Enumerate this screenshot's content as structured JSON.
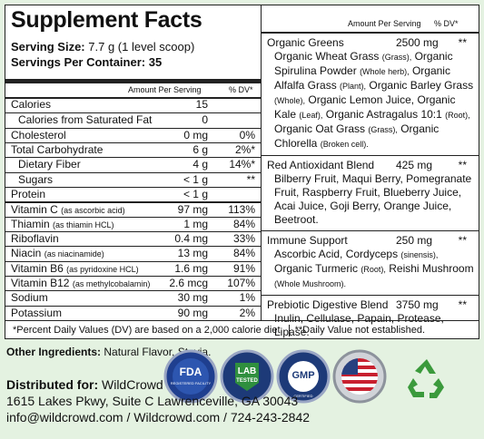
{
  "header": {
    "title": "Supplement Facts",
    "serving_size_label": "Serving Size:",
    "serving_size": "7.7 g (1 level scoop)",
    "servings_label": "Servings Per Container:",
    "servings": "35"
  },
  "left_table": {
    "columns": [
      "Amount Per Serving",
      "% DV*"
    ],
    "rows": [
      {
        "name": "Calories",
        "amount": "15"
      },
      {
        "name": "Calories from Saturated Fat",
        "amount": "0",
        "indent": true
      },
      {
        "name": "Cholesterol",
        "amount": "0 mg",
        "dv": "0%"
      },
      {
        "name": "Total Carbohydrate",
        "amount": "6 g",
        "dv": "2%*"
      },
      {
        "name": "Dietary Fiber",
        "amount": "4 g",
        "dv": "14%*",
        "indent": true
      },
      {
        "name": "Sugars",
        "amount": "< 1 g",
        "dv": "**",
        "indent": true
      },
      {
        "name": "Protein",
        "amount": "< 1 g"
      },
      {
        "name": "Vitamin C",
        "note": "(as ascorbic acid)",
        "amount": "97 mg",
        "dv": "113%"
      },
      {
        "name": "Thiamin",
        "note": "(as thiamin HCL)",
        "amount": "1 mg",
        "dv": "84%"
      },
      {
        "name": "Riboflavin",
        "amount": "0.4 mg",
        "dv": "33%"
      },
      {
        "name": "Niacin",
        "note": "(as niacinamide)",
        "amount": "13 mg",
        "dv": "84%"
      },
      {
        "name": "Vitamin B6",
        "note": "(as pyridoxine HCL)",
        "amount": "1.6 mg",
        "dv": "91%"
      },
      {
        "name": "Vitamin B12",
        "note": "(as methylcobalamin)",
        "amount": "2.6 mcg",
        "dv": "107%"
      },
      {
        "name": "Sodium",
        "amount": "30 mg",
        "dv": "1%"
      },
      {
        "name": "Potassium",
        "amount": "90 mg",
        "dv": "2%"
      }
    ]
  },
  "right_table": {
    "columns": [
      "Amount Per Serving",
      "% DV*"
    ],
    "blends": [
      {
        "name": "Organic Greens",
        "amount": "2500 mg",
        "dv": "**",
        "items": [
          {
            "name": "Organic Wheat Grass",
            "note": "(Grass),"
          },
          {
            "name": "Organic Spirulina Powder",
            "note": "(Whole herb),"
          },
          {
            "name": "Organic Alfalfa Grass",
            "note": "(Plant),"
          },
          {
            "name": "Organic Barley Grass",
            "note": "(Whole),"
          },
          {
            "name": "Organic Lemon Juice,"
          },
          {
            "name": "Organic Kale",
            "note": "(Leaf),"
          },
          {
            "name": "Organic Astragalus 10:1",
            "note": "(Root),"
          },
          {
            "name": "Organic Oat Grass",
            "note": "(Grass),"
          },
          {
            "name": "Organic Chlorella",
            "note": "(Broken cell)."
          }
        ]
      },
      {
        "name": "Red Antioxidant Blend",
        "amount": "425 mg",
        "dv": "**",
        "items": [
          {
            "name": "Bilberry Fruit,"
          },
          {
            "name": "Maqui Berry,"
          },
          {
            "name": "Pomegranate Fruit,"
          },
          {
            "name": "Raspberry Fruit,"
          },
          {
            "name": "Blueberry Juice,"
          },
          {
            "name": "Acai Juice,"
          },
          {
            "name": "Goji Berry,"
          },
          {
            "name": "Orange Juice,"
          },
          {
            "name": "Beetroot."
          }
        ]
      },
      {
        "name": "Immune Support",
        "amount": "250 mg",
        "dv": "**",
        "items": [
          {
            "name": "Ascorbic Acid,"
          },
          {
            "name": "Cordyceps",
            "note": "(sinensis),"
          },
          {
            "name": "Organic Turmeric",
            "note": "(Root),"
          },
          {
            "name": "Reishi Mushroom",
            "note": "(Whole Mushroom)."
          }
        ]
      },
      {
        "name": "Prebiotic Digestive Blend",
        "amount": "3750 mg",
        "dv": "**",
        "items": [
          {
            "name": "Inulin,"
          },
          {
            "name": "Cellulase,"
          },
          {
            "name": "Papain,"
          },
          {
            "name": "Protease,"
          },
          {
            "name": "Lipase."
          }
        ]
      }
    ]
  },
  "footnote": {
    "left": "*Percent Daily Values (DV) are based on a 2,000 calorie diet.",
    "right": "**Daily Value not established."
  },
  "other_ingredients": {
    "label": "Other Ingredients:",
    "value": "Natural Flavor, Stevia."
  },
  "badges": [
    {
      "top": "FDA",
      "bottom": "REGISTERED FACILITY"
    },
    {
      "top": "LAB",
      "bottom": "TESTED"
    },
    {
      "top": "GMP",
      "bottom": "CERTIFIED"
    }
  ],
  "distributor": {
    "label": "Distributed for:",
    "name": "WildCrowd",
    "address": "1615 Lakes Pkwy, Suite C Lawrenceville, GA 30043",
    "contact": "info@wildcrowd.com / Wildcrowd.com / 724-243-2842"
  }
}
